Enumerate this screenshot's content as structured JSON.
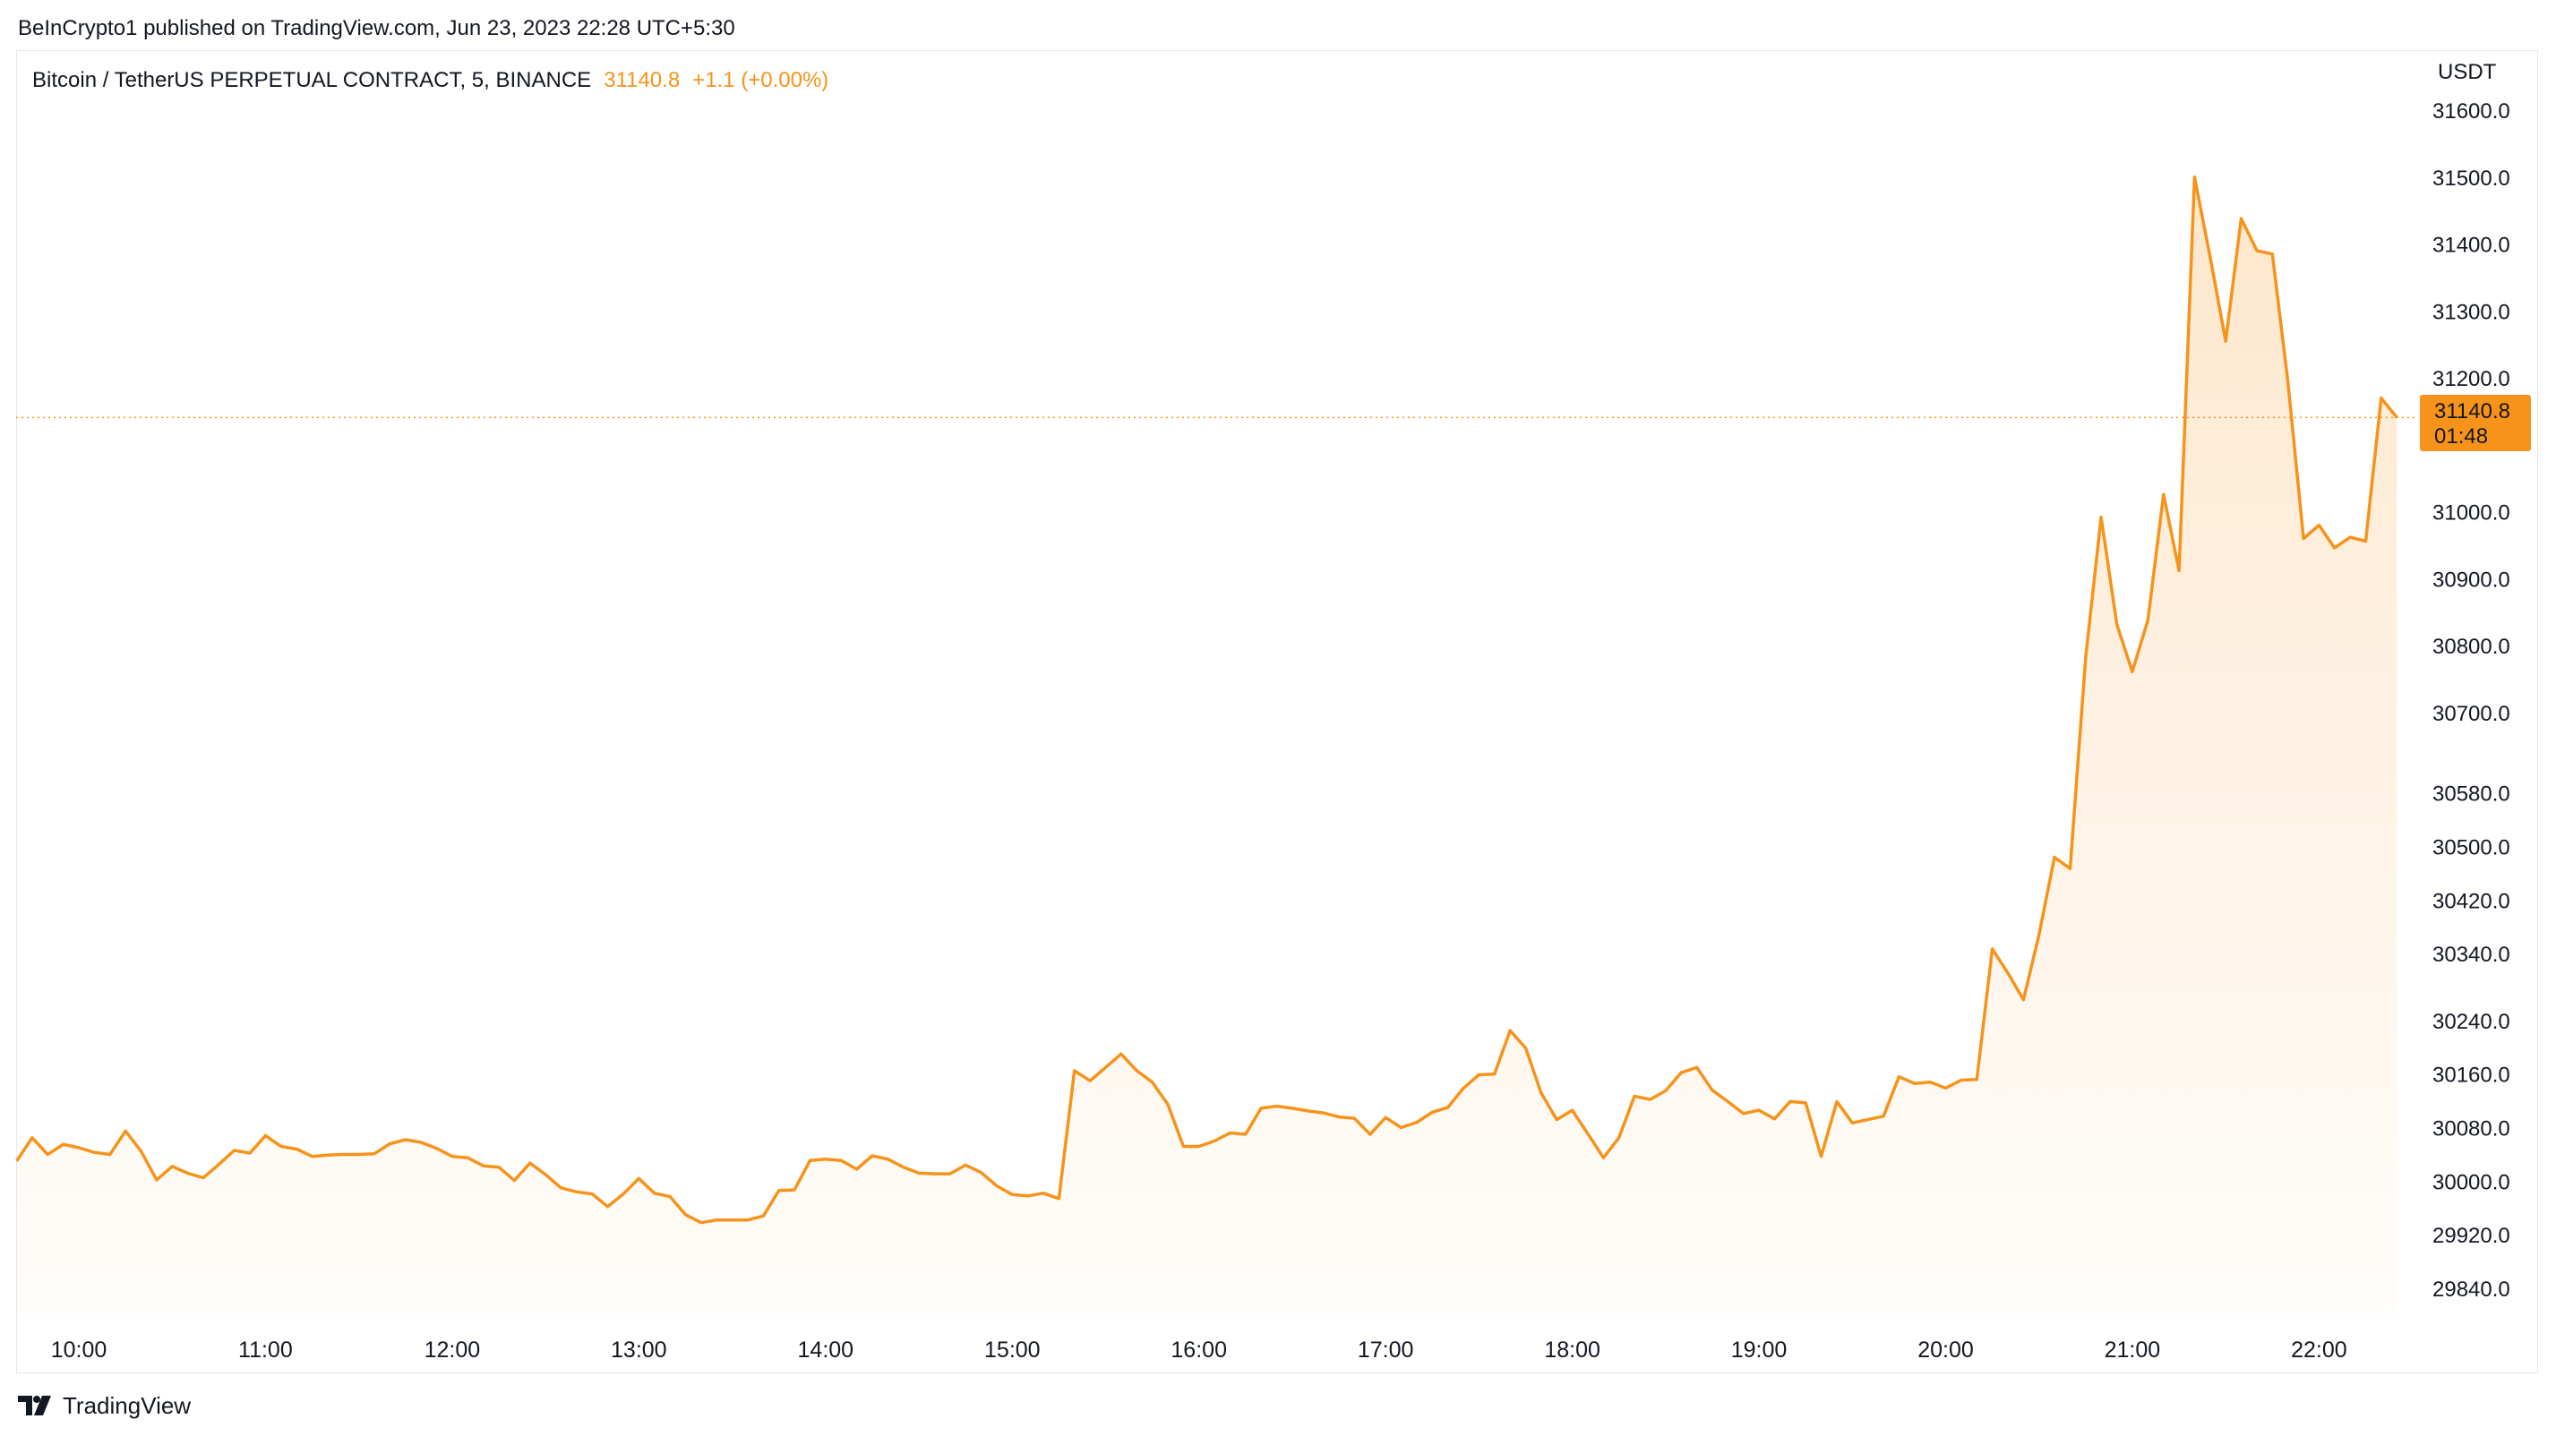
{
  "publisher": "BeInCrypto1 published on TradingView.com, Jun 23, 2023 22:28 UTC+5:30",
  "symbol": {
    "title": "Bitcoin / TetherUS PERPETUAL CONTRACT, 5, BINANCE",
    "price": "31140.8",
    "change": "+1.1 (+0.00%)"
  },
  "axis": {
    "currency": "USDT"
  },
  "price_tag": {
    "price": "31140.8",
    "countdown": "01:48"
  },
  "footer": {
    "brand": "TradingView",
    "logo_icon": "tradingview-logo-icon"
  },
  "colors": {
    "line": "#f7931a",
    "tag_bg": "#f7931a",
    "text": "#131722",
    "grid_border": "#e8e8ec"
  },
  "chart_data": {
    "type": "area",
    "title": "Bitcoin / TetherUS PERPETUAL CONTRACT, 5, BINANCE",
    "xlabel": "",
    "ylabel": "USDT",
    "grid": false,
    "ylim": [
      29800,
      31730
    ],
    "y_ticks": [
      29840,
      29920,
      30000,
      30080,
      30160,
      30240,
      30340,
      30420,
      30500,
      30580,
      30700,
      30800,
      30900,
      31000,
      31200,
      31300,
      31400,
      31500,
      31600
    ],
    "y_tick_labels": [
      "29840.0",
      "29920.0",
      "30000.0",
      "30080.0",
      "30160.0",
      "30240.0",
      "30340.0",
      "30420.0",
      "30500.0",
      "30580.0",
      "30700.0",
      "30800.0",
      "30900.0",
      "31000.0",
      "31200.0",
      "31300.0",
      "31400.0",
      "31500.0",
      "31600.0"
    ],
    "x_ticks": [
      10,
      11,
      12,
      13,
      14,
      15,
      16,
      17,
      18,
      19,
      20,
      21,
      22
    ],
    "x_tick_labels": [
      "10:00",
      "11:00",
      "12:00",
      "13:00",
      "14:00",
      "15:00",
      "16:00",
      "17:00",
      "18:00",
      "19:00",
      "20:00",
      "21:00",
      "22:00"
    ],
    "last_price_line": 31140.8,
    "series": [
      {
        "x": [
          9.667,
          9.75,
          9.833,
          9.917,
          10.0,
          10.083,
          10.167,
          10.25,
          10.333,
          10.417,
          10.5,
          10.583,
          10.667,
          10.75,
          10.833,
          10.917,
          11.0,
          11.083,
          11.167,
          11.25,
          11.333,
          11.417,
          11.5,
          11.583,
          11.667,
          11.75,
          11.833,
          11.917,
          12.0,
          12.083,
          12.167,
          12.25,
          12.333,
          12.417,
          12.5,
          12.583,
          12.667,
          12.75,
          12.833,
          12.917,
          13.0,
          13.083,
          13.167,
          13.25,
          13.333,
          13.417,
          13.5,
          13.583,
          13.667,
          13.75,
          13.833,
          13.917,
          14.0,
          14.083,
          14.167,
          14.25,
          14.333,
          14.417,
          14.5,
          14.583,
          14.667,
          14.75,
          14.833,
          14.917,
          15.0,
          15.083,
          15.167,
          15.25,
          15.333,
          15.417,
          15.5,
          15.583,
          15.667,
          15.75,
          15.833,
          15.917,
          16.0,
          16.083,
          16.167,
          16.25,
          16.333,
          16.417,
          16.5,
          16.583,
          16.667,
          16.75,
          16.833,
          16.917,
          17.0,
          17.083,
          17.167,
          17.25,
          17.333,
          17.417,
          17.5,
          17.583,
          17.667,
          17.75,
          17.833,
          17.917,
          18.0,
          18.083,
          18.167,
          18.25,
          18.333,
          18.417,
          18.5,
          18.583,
          18.667,
          18.75,
          18.833,
          18.917,
          19.0,
          19.083,
          19.167,
          19.25,
          19.333,
          19.417,
          19.5,
          19.583,
          19.667,
          19.75,
          19.833,
          19.917,
          20.0,
          20.083,
          20.167,
          20.25,
          20.333,
          20.417,
          20.5,
          20.583,
          20.667,
          20.75,
          20.833,
          20.917,
          21.0,
          21.083,
          21.167,
          21.25,
          21.333,
          21.417,
          21.5,
          21.583,
          21.667,
          21.75,
          21.833,
          21.917,
          22.0,
          22.083,
          22.167,
          22.25,
          22.333,
          22.417
        ],
        "y": [
          30030,
          30065,
          30040,
          30055,
          30050,
          30043,
          30040,
          30075,
          30045,
          30002,
          30022,
          30012,
          30005,
          30025,
          30046,
          30042,
          30068,
          30052,
          30048,
          30037,
          30039,
          30040,
          30040,
          30041,
          30056,
          30062,
          30058,
          30049,
          30037,
          30035,
          30023,
          30021,
          30001,
          30027,
          30010,
          29990,
          29984,
          29981,
          29962,
          29981,
          30004,
          29982,
          29977,
          29950,
          29938,
          29942,
          29942,
          29942,
          29948,
          29986,
          29987,
          30031,
          30033,
          30031,
          30018,
          30038,
          30033,
          30021,
          30012,
          30011,
          30011,
          30024,
          30013,
          29993,
          29980,
          29978,
          29982,
          29974,
          30165,
          30150,
          30170,
          30190,
          30165,
          30148,
          30115,
          30052,
          30052,
          30060,
          30072,
          30070,
          30109,
          30112,
          30109,
          30105,
          30102,
          30096,
          30094,
          30070,
          30095,
          30080,
          30088,
          30103,
          30110,
          30139,
          30159,
          30160,
          30225,
          30199,
          30132,
          30092,
          30106,
          30071,
          30035,
          30065,
          30127,
          30122,
          30135,
          30162,
          30170,
          30136,
          30119,
          30101,
          30106,
          30093,
          30119,
          30117,
          30037,
          30119,
          30087,
          30092,
          30097,
          30156,
          30146,
          30148,
          30139,
          30151,
          30152,
          30347,
          30311,
          30271,
          30368,
          30484,
          30467,
          30782,
          30992,
          30832,
          30761,
          30838,
          31026,
          30912,
          31500,
          31380,
          31255,
          31438,
          31390,
          31385,
          31195,
          30960,
          30980,
          30946,
          30962,
          30956,
          31170,
          31140.8
        ]
      }
    ]
  }
}
